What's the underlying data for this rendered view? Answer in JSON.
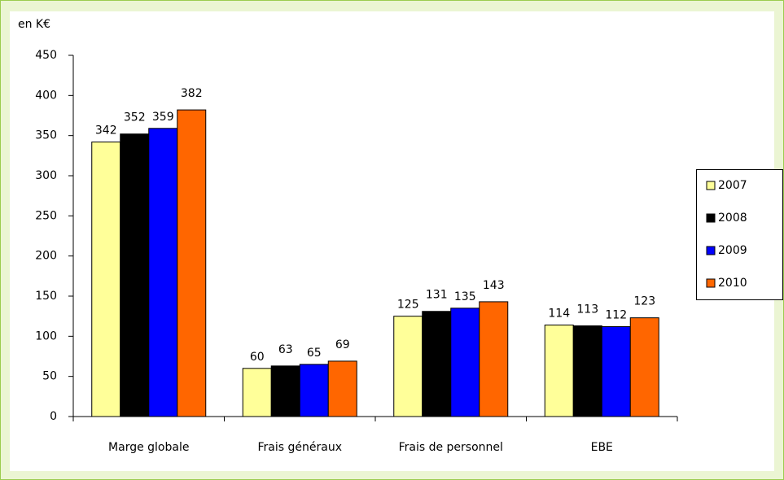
{
  "chart_data": {
    "type": "bar",
    "y_label": "en K€",
    "categories": [
      "Marge globale",
      "Frais généraux",
      "Frais de personnel",
      "EBE"
    ],
    "series": [
      {
        "name": "2007",
        "color": "#ffff99",
        "values": [
          342,
          60,
          125,
          114
        ]
      },
      {
        "name": "2008",
        "color": "#000000",
        "values": [
          352,
          63,
          131,
          113
        ]
      },
      {
        "name": "2009",
        "color": "#0000ff",
        "values": [
          359,
          65,
          135,
          112
        ]
      },
      {
        "name": "2010",
        "color": "#ff6600",
        "values": [
          382,
          69,
          143,
          123
        ]
      }
    ],
    "ylim": [
      0,
      450
    ],
    "yticks": [
      0,
      50,
      100,
      150,
      200,
      250,
      300,
      350,
      400,
      450
    ],
    "grid": false,
    "legend": "right"
  }
}
